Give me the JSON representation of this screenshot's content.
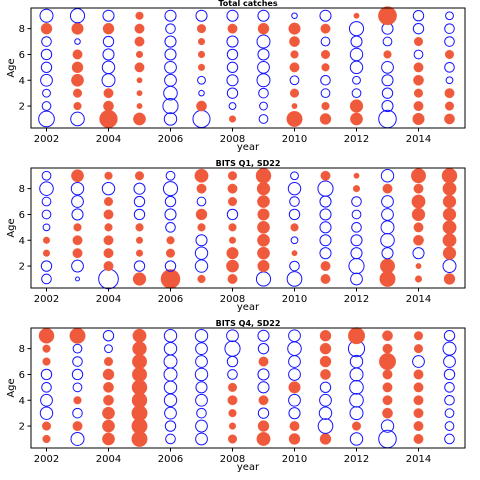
{
  "colors": {
    "positive": "#f05a3c",
    "negative": "#1414ff"
  },
  "chart_data": [
    {
      "type": "scatter",
      "title": "Total catches",
      "xlabel": "year",
      "ylabel": "Age",
      "xlim": [
        2001.5,
        2015.5
      ],
      "ylim": [
        0.3,
        9.6
      ],
      "xticks": [
        "2002",
        "2004",
        "2006",
        "2008",
        "2010",
        "2012",
        "2014"
      ],
      "yticks": [
        "2",
        "4",
        "6",
        "8"
      ],
      "grid": false,
      "legend": "none",
      "years": [
        2002,
        2003,
        2004,
        2005,
        2006,
        2007,
        2008,
        2009,
        2010,
        2011,
        2012,
        2013,
        2014,
        2015
      ],
      "ages": [
        1,
        2,
        3,
        4,
        5,
        6,
        7,
        8,
        9
      ],
      "residuals": [
        [
          -1.6,
          -1.2,
          2.1,
          1.0,
          -1.0,
          -1.9,
          0.3,
          -0.5,
          1.6,
          0.8,
          1.0,
          -2.0,
          0.9,
          0.7
        ],
        [
          -0.5,
          0.4,
          0.7,
          0.2,
          -1.5,
          0.7,
          -0.3,
          -0.4,
          0.2,
          0.4,
          1.1,
          -0.8,
          0.6,
          0.5
        ],
        [
          -0.4,
          0.5,
          0.6,
          0.2,
          -1.2,
          -0.2,
          -0.7,
          -0.6,
          0.5,
          -0.5,
          -0.5,
          -0.7,
          0.5,
          0.6
        ],
        [
          -0.9,
          1.0,
          -1.1,
          0.2,
          -0.9,
          -0.4,
          -0.8,
          -1.1,
          -0.5,
          -0.6,
          -0.4,
          -0.8,
          0.7,
          -0.3
        ],
        [
          -0.7,
          0.8,
          -1.0,
          0.6,
          -0.9,
          0.3,
          -0.7,
          -0.9,
          0.6,
          0.4,
          -1.0,
          -0.9,
          0.6,
          -0.6
        ],
        [
          -0.7,
          0.6,
          -0.8,
          0.3,
          -0.8,
          0.3,
          -0.7,
          -0.8,
          0.4,
          0.5,
          -1.0,
          0.4,
          -0.5,
          0.5
        ],
        [
          -0.6,
          -0.2,
          -0.7,
          0.6,
          -0.8,
          0.3,
          -0.8,
          -1.1,
          0.7,
          -0.5,
          -0.8,
          -0.5,
          0.5,
          -0.6
        ],
        [
          0.8,
          0.9,
          0.8,
          0.6,
          -0.6,
          0.5,
          0.6,
          0.8,
          0.9,
          0.6,
          -1.3,
          -0.8,
          -0.7,
          -0.6
        ],
        [
          -1.1,
          -1.3,
          -0.8,
          0.4,
          -0.8,
          -0.8,
          -0.8,
          -0.8,
          -0.2,
          -0.8,
          0.2,
          2.2,
          -0.7,
          -0.4
        ]
      ]
    },
    {
      "type": "scatter",
      "title": "BITS Q1, SD22",
      "xlabel": "year",
      "ylabel": "Age",
      "xlim": [
        2001.5,
        2015.5
      ],
      "ylim": [
        0.3,
        9.6
      ],
      "xticks": [
        "2002",
        "2004",
        "2006",
        "2008",
        "2010",
        "2012",
        "2014"
      ],
      "yticks": [
        "2",
        "4",
        "6",
        "8"
      ],
      "grid": false,
      "legend": "none",
      "years": [
        2002,
        2003,
        2004,
        2005,
        2006,
        2007,
        2008,
        2009,
        2010,
        2011,
        2012,
        2013,
        2014,
        2015
      ],
      "ages": [
        1,
        2,
        3,
        4,
        5,
        6,
        7,
        8,
        9
      ],
      "residuals": [
        [
          -0.6,
          -0.1,
          -2.5,
          1.1,
          2.4,
          0.4,
          0.6,
          -1.3,
          -1.4,
          0.6,
          -0.9,
          1.6,
          0.3,
          0.8
        ],
        [
          -0.7,
          -0.9,
          0.6,
          -0.7,
          -0.7,
          -1.0,
          1.0,
          0.9,
          -0.6,
          0.6,
          -1.5,
          1.4,
          0.2,
          -1.1
        ],
        [
          0.3,
          0.6,
          0.6,
          0.3,
          0.5,
          -1.0,
          0.9,
          1.0,
          0.2,
          -0.8,
          -0.8,
          -0.8,
          -0.8,
          1.1
        ],
        [
          0.3,
          0.6,
          0.6,
          0.3,
          0.4,
          -0.8,
          0.3,
          1.0,
          -0.3,
          -0.8,
          -0.8,
          -1.2,
          0.7,
          1.2
        ],
        [
          -0.3,
          0.4,
          0.4,
          0.4,
          -0.6,
          0.4,
          0.4,
          1.0,
          0.4,
          -0.8,
          -0.6,
          -1.1,
          0.6,
          1.2
        ],
        [
          -0.5,
          -0.8,
          0.6,
          -0.7,
          -0.8,
          0.8,
          -0.7,
          0.9,
          -0.7,
          -0.8,
          -0.5,
          -0.9,
          1.1,
          1.1
        ],
        [
          -0.5,
          -0.9,
          0.5,
          -0.7,
          -0.7,
          -0.5,
          0.5,
          1.0,
          -0.6,
          -0.8,
          -0.6,
          -0.9,
          1.2,
          1.1
        ],
        [
          -1.2,
          -1.0,
          -1.0,
          -0.8,
          -1.3,
          0.6,
          0.6,
          1.1,
          -1.0,
          -1.5,
          0.3,
          0.6,
          0.6,
          1.2
        ],
        [
          -0.5,
          1.0,
          0.4,
          0.5,
          -0.5,
          1.2,
          0.5,
          1.5,
          -0.4,
          0.6,
          0.2,
          -1.0,
          1.4,
          1.5
        ]
      ]
    },
    {
      "type": "scatter",
      "title": "BITS Q4, SD22",
      "xlabel": "year",
      "ylabel": "Age",
      "xlim": [
        2001.5,
        2015.5
      ],
      "ylim": [
        0.3,
        9.6
      ],
      "xticks": [
        "2002",
        "2004",
        "2006",
        "2008",
        "2010",
        "2012",
        "2014"
      ],
      "yticks": [
        "2",
        "4",
        "6",
        "8"
      ],
      "grid": false,
      "legend": "none",
      "years": [
        2002,
        2003,
        2004,
        2005,
        2006,
        2007,
        2008,
        2009,
        2010,
        2011,
        2012,
        2013,
        2014,
        2015
      ],
      "ages": [
        1,
        2,
        3,
        4,
        5,
        6,
        7,
        8,
        9
      ],
      "residuals": [
        [
          0.4,
          -1.1,
          1.0,
          1.6,
          -0.6,
          -0.9,
          0.5,
          1.2,
          0.8,
          0.8,
          -1.0,
          -2.0,
          0.6,
          -0.6
        ],
        [
          0.5,
          0.6,
          1.0,
          1.6,
          -0.7,
          -0.9,
          0.3,
          0.8,
          0.6,
          -1.4,
          0.5,
          -1.0,
          0.6,
          -0.5
        ],
        [
          -1.0,
          -0.6,
          1.0,
          1.6,
          -0.9,
          -0.6,
          0.4,
          -0.7,
          -0.8,
          -1.0,
          -1.1,
          0.7,
          0.6,
          -0.5
        ],
        [
          -0.9,
          0.4,
          0.7,
          1.5,
          -1.0,
          -0.9,
          0.6,
          0.6,
          -0.9,
          -0.9,
          -1.2,
          0.6,
          0.6,
          -0.6
        ],
        [
          -0.6,
          -0.5,
          0.7,
          1.5,
          -1.0,
          -0.8,
          0.5,
          -0.8,
          0.9,
          -0.7,
          -1.2,
          0.6,
          0.6,
          -0.6
        ],
        [
          -0.7,
          -0.7,
          0.8,
          1.4,
          -1.1,
          -1.0,
          -0.6,
          -0.8,
          -0.9,
          0.7,
          -1.1,
          0.6,
          0.6,
          -0.7
        ],
        [
          0.4,
          -0.6,
          0.5,
          1.4,
          -1.1,
          -0.9,
          -0.7,
          0.6,
          -0.9,
          0.8,
          -1.0,
          1.8,
          -0.9,
          -0.9
        ],
        [
          0.4,
          -0.5,
          -0.4,
          1.3,
          -1.0,
          -0.9,
          -1.5,
          -0.7,
          -1.2,
          0.8,
          -1.7,
          0.6,
          0.5,
          -1.1
        ],
        [
          1.5,
          1.6,
          -0.7,
          1.2,
          -1.0,
          -1.0,
          -0.9,
          -0.8,
          -0.9,
          0.8,
          1.8,
          0.7,
          0.5,
          -0.7
        ]
      ]
    }
  ]
}
